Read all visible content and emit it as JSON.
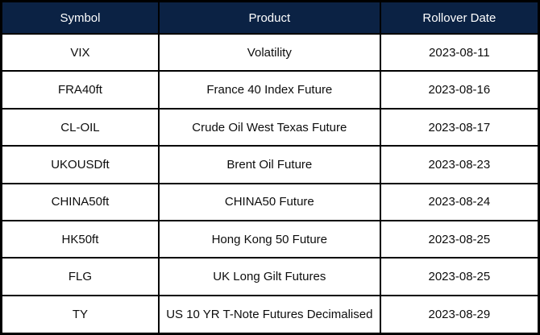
{
  "colors": {
    "header_bg": "#0b2244",
    "header_text": "#ffffff",
    "body_text": "#0d0d0d",
    "border": "#000000",
    "row_bg": "#ffffff"
  },
  "table": {
    "columns": [
      "Symbol",
      "Product",
      "Rollover Date"
    ],
    "rows": [
      [
        "VIX",
        "Volatility",
        "2023-08-11"
      ],
      [
        "FRA40ft",
        "France 40 Index Future",
        "2023-08-16"
      ],
      [
        "CL-OIL",
        "Crude Oil West Texas Future",
        "2023-08-17"
      ],
      [
        "UKOUSDft",
        "Brent Oil Future",
        "2023-08-23"
      ],
      [
        "CHINA50ft",
        "CHINA50 Future",
        "2023-08-24"
      ],
      [
        "HK50ft",
        "Hong Kong 50 Future",
        "2023-08-25"
      ],
      [
        "FLG",
        "UK Long Gilt Futures",
        "2023-08-25"
      ],
      [
        "TY",
        "US 10 YR T-Note Futures Decimalised",
        "2023-08-29"
      ]
    ]
  },
  "chart_data": {
    "type": "table",
    "columns": [
      "Symbol",
      "Product",
      "Rollover Date"
    ],
    "rows": [
      [
        "VIX",
        "Volatility",
        "2023-08-11"
      ],
      [
        "FRA40ft",
        "France 40 Index Future",
        "2023-08-16"
      ],
      [
        "CL-OIL",
        "Crude Oil West Texas Future",
        "2023-08-17"
      ],
      [
        "UKOUSDft",
        "Brent Oil Future",
        "2023-08-23"
      ],
      [
        "CHINA50ft",
        "CHINA50 Future",
        "2023-08-24"
      ],
      [
        "HK50ft",
        "Hong Kong 50 Future",
        "2023-08-25"
      ],
      [
        "FLG",
        "UK Long Gilt Futures",
        "2023-08-25"
      ],
      [
        "TY",
        "US 10 YR T-Note Futures Decimalised",
        "2023-08-29"
      ]
    ]
  }
}
